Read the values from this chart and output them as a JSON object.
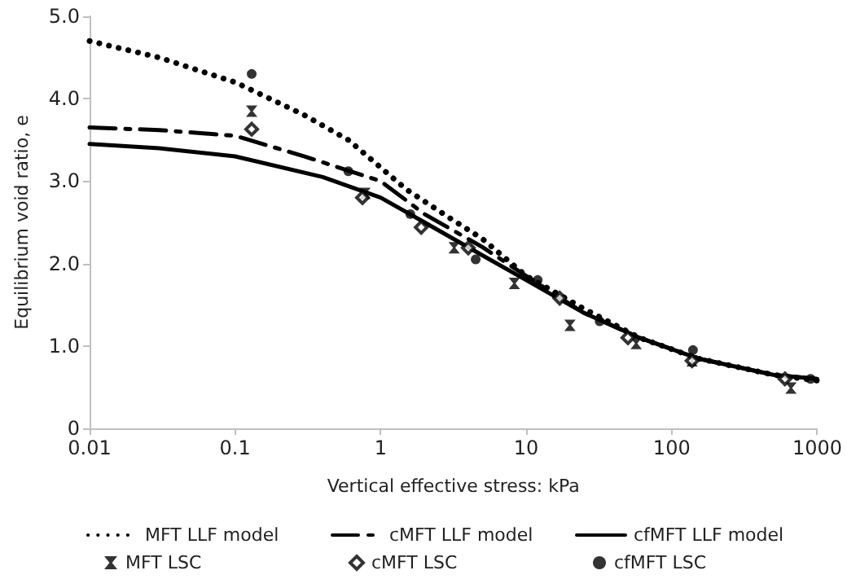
{
  "chart_data": {
    "type": "line",
    "xlabel": "Vertical effective stress: kPa",
    "ylabel": "Equilibrium void ratio, e",
    "log": "x",
    "xlim": [
      0.01,
      1000
    ],
    "xticks": [
      0.01,
      0.1,
      1,
      10,
      100,
      1000
    ],
    "ylim": [
      0,
      5
    ],
    "yticks": [
      {
        "value": 0,
        "label": "0"
      },
      {
        "value": 1,
        "label": "1.0"
      },
      {
        "value": 2,
        "label": "2.0"
      },
      {
        "value": 3,
        "label": "3.0"
      },
      {
        "value": 4,
        "label": "4.0"
      },
      {
        "value": 5,
        "label": "5.0"
      }
    ],
    "grid": false,
    "legend": "bottom",
    "series": [
      {
        "name": "MFT LLF model",
        "line_style": "dotted",
        "marker": "none",
        "color": "#000000",
        "x": [
          0.01,
          0.03,
          0.1,
          0.3,
          0.6,
          1.5,
          3,
          5,
          10,
          25,
          60,
          150,
          500,
          1000
        ],
        "values": [
          4.7,
          4.5,
          4.2,
          3.8,
          3.5,
          2.9,
          2.55,
          2.3,
          1.85,
          1.45,
          1.1,
          0.85,
          0.65,
          0.58
        ]
      },
      {
        "name": "cMFT LLF model",
        "line_style": "dashed",
        "marker": "none",
        "color": "#000000",
        "x": [
          0.01,
          0.03,
          0.1,
          0.3,
          1,
          2,
          5,
          10,
          25,
          60,
          150,
          500,
          1000
        ],
        "values": [
          3.65,
          3.62,
          3.55,
          3.3,
          3.0,
          2.6,
          2.2,
          1.85,
          1.4,
          1.1,
          0.85,
          0.65,
          0.6
        ]
      },
      {
        "name": "cfMFT LLF model",
        "line_style": "solid",
        "marker": "none",
        "color": "#000000",
        "x": [
          0.01,
          0.03,
          0.1,
          0.4,
          1,
          2,
          5,
          10,
          25,
          60,
          150,
          500,
          1000
        ],
        "values": [
          3.45,
          3.4,
          3.3,
          3.05,
          2.8,
          2.5,
          2.1,
          1.8,
          1.4,
          1.1,
          0.85,
          0.65,
          0.6
        ]
      },
      {
        "name": "MFT LSC",
        "type": "scatter",
        "marker": "cross",
        "color": "#000000",
        "x": [
          0.13,
          0.78,
          3.2,
          8.3,
          20,
          57,
          138,
          660
        ],
        "values": [
          3.85,
          2.85,
          2.19,
          1.76,
          1.25,
          1.03,
          0.82,
          0.49
        ]
      },
      {
        "name": "cMFT LSC",
        "type": "scatter",
        "marker": "diamond",
        "color": "#000000",
        "x": [
          0.13,
          0.75,
          1.9,
          4,
          17,
          50,
          138,
          600
        ],
        "values": [
          3.63,
          2.8,
          2.44,
          2.19,
          1.58,
          1.1,
          0.82,
          0.6
        ]
      },
      {
        "name": "cfMFT LSC",
        "type": "scatter",
        "marker": "circle",
        "color": "#000000",
        "x": [
          0.13,
          0.6,
          1.6,
          4.5,
          12,
          32,
          140,
          900
        ],
        "values": [
          4.3,
          3.12,
          2.6,
          2.05,
          1.8,
          1.3,
          0.95,
          0.6
        ]
      }
    ]
  }
}
